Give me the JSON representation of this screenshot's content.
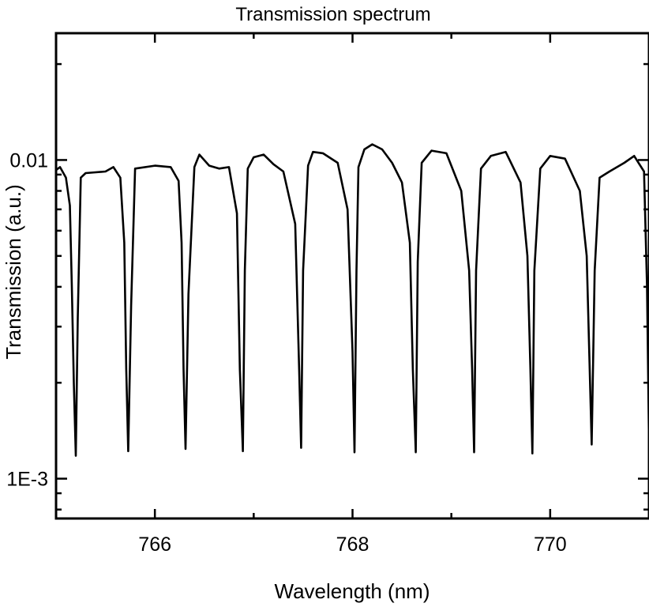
{
  "chart_data": {
    "type": "line",
    "title": "Transmission spectrum",
    "xlabel": "Wavelength (nm)",
    "ylabel": "Transmission (a.u.)",
    "xlim": [
      765.0,
      771.0
    ],
    "ylim": [
      0.00075,
      0.025
    ],
    "yscale": "log",
    "grid": false,
    "legend": "none",
    "line_color": "#000000",
    "x_ticks": [
      {
        "value": 766,
        "label": "766"
      },
      {
        "value": 768,
        "label": "768"
      },
      {
        "value": 770,
        "label": "770"
      }
    ],
    "y_ticks": [
      {
        "value": 0.01,
        "label": "0.01"
      },
      {
        "value": 0.001,
        "label": "1E-3"
      }
    ],
    "series": [
      {
        "x": [
          765.0,
          765.04,
          765.1,
          765.14,
          765.16,
          765.18,
          765.2,
          765.22,
          765.25,
          765.3,
          765.5,
          765.58,
          765.65,
          765.69,
          765.71,
          765.73,
          765.76,
          765.8,
          766.0,
          766.16,
          766.24,
          766.27,
          766.29,
          766.31,
          766.34,
          766.4,
          766.45,
          766.55,
          766.65,
          766.75,
          766.83,
          766.86,
          766.89,
          766.91,
          766.94,
          767.0,
          767.1,
          767.2,
          767.3,
          767.42,
          767.46,
          767.48,
          767.5,
          767.55,
          767.6,
          767.7,
          767.85,
          767.95,
          768.0,
          768.02,
          768.04,
          768.06,
          768.12,
          768.2,
          768.3,
          768.4,
          768.5,
          768.58,
          768.61,
          768.64,
          768.66,
          768.7,
          768.8,
          768.95,
          769.1,
          769.18,
          769.21,
          769.23,
          769.25,
          769.3,
          769.4,
          769.55,
          769.7,
          769.77,
          769.8,
          769.82,
          769.84,
          769.9,
          770.0,
          770.15,
          770.3,
          770.37,
          770.4,
          770.42,
          770.45,
          770.5,
          770.6,
          770.75,
          770.85,
          770.95,
          770.98,
          771.0
        ],
        "y": [
          0.0093,
          0.0095,
          0.0088,
          0.0072,
          0.004,
          0.002,
          0.00118,
          0.0032,
          0.0088,
          0.0091,
          0.0092,
          0.0095,
          0.0088,
          0.0055,
          0.0022,
          0.00122,
          0.0035,
          0.0094,
          0.0096,
          0.0095,
          0.0086,
          0.0055,
          0.0022,
          0.00124,
          0.0038,
          0.0095,
          0.0104,
          0.0096,
          0.0094,
          0.0095,
          0.0068,
          0.0022,
          0.00122,
          0.0045,
          0.0094,
          0.0102,
          0.0104,
          0.0097,
          0.0092,
          0.0063,
          0.0022,
          0.00125,
          0.0045,
          0.0096,
          0.0106,
          0.0105,
          0.0098,
          0.007,
          0.0025,
          0.00121,
          0.0045,
          0.0095,
          0.0108,
          0.0112,
          0.0108,
          0.0098,
          0.0085,
          0.0055,
          0.0022,
          0.00121,
          0.0048,
          0.0098,
          0.0107,
          0.0105,
          0.008,
          0.0045,
          0.0022,
          0.00121,
          0.0045,
          0.0094,
          0.0103,
          0.0106,
          0.0085,
          0.005,
          0.0022,
          0.0012,
          0.0045,
          0.0094,
          0.0103,
          0.0101,
          0.008,
          0.005,
          0.0022,
          0.00128,
          0.0045,
          0.0088,
          0.0092,
          0.0098,
          0.0103,
          0.0092,
          0.004,
          0.0013
        ]
      }
    ]
  }
}
